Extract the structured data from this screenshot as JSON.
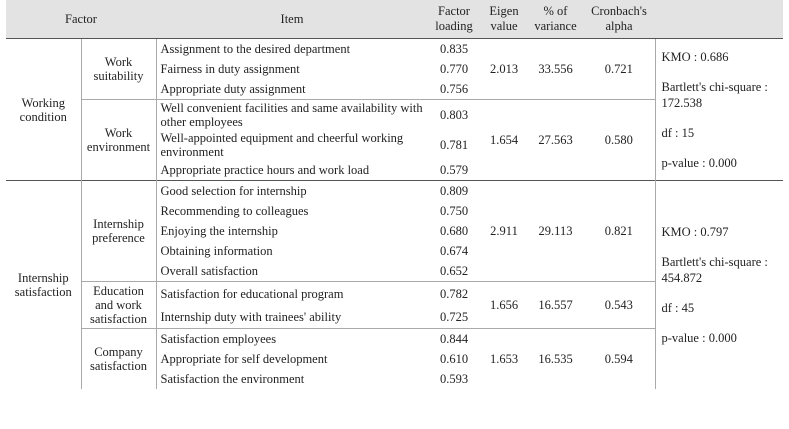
{
  "headers": {
    "factor": "Factor",
    "item": "Item",
    "loading": "Factor loading",
    "eigen": "Eigen value",
    "variance": "% of variance",
    "alpha": "Cronbach's alpha"
  },
  "groups": {
    "working": {
      "label": "Working condition",
      "suitability": {
        "label": "Work suitability",
        "items": [
          {
            "item": "Assignment to the desired department",
            "loading": "0.835"
          },
          {
            "item": "Fairness in duty assignment",
            "loading": "0.770"
          },
          {
            "item": "Appropriate duty assignment",
            "loading": "0.756"
          }
        ],
        "eigen": "2.013",
        "variance": "33.556",
        "alpha": "0.721"
      },
      "environment": {
        "label": "Work environment",
        "items": [
          {
            "item": "Well convenient facilities and same availability with other employees",
            "loading": "0.803"
          },
          {
            "item": "Well-appointed equipment and cheerful working environment",
            "loading": "0.781"
          },
          {
            "item": "Appropriate practice hours and work load",
            "loading": "0.579"
          }
        ],
        "eigen": "1.654",
        "variance": "27.563",
        "alpha": "0.580"
      },
      "summary": {
        "kmo": "KMO : 0.686",
        "bartlett": "Bartlett's chi-square : 172.538",
        "df": "df : 15",
        "pvalue": "p-value : 0.000"
      }
    },
    "internship": {
      "label": "Internship satisfaction",
      "preference": {
        "label": "Internship preference",
        "items": [
          {
            "item": "Good selection for internship",
            "loading": "0.809"
          },
          {
            "item": "Recommending to colleagues",
            "loading": "0.750"
          },
          {
            "item": "Enjoying the internship",
            "loading": "0.680"
          },
          {
            "item": "Obtaining information",
            "loading": "0.674"
          },
          {
            "item": "Overall satisfaction",
            "loading": "0.652"
          }
        ],
        "eigen": "2.911",
        "variance": "29.113",
        "alpha": "0.821"
      },
      "education": {
        "label": "Education and work satisfaction",
        "items": [
          {
            "item": "Satisfaction for educational program",
            "loading": "0.782"
          },
          {
            "item": "Internship duty with trainees' ability",
            "loading": "0.725"
          }
        ],
        "eigen": "1.656",
        "variance": "16.557",
        "alpha": "0.543"
      },
      "company": {
        "label": "Company satisfaction",
        "items": [
          {
            "item": "Satisfaction employees",
            "loading": "0.844"
          },
          {
            "item": "Appropriate for self development",
            "loading": "0.610"
          },
          {
            "item": "Satisfaction the environment",
            "loading": "0.593"
          }
        ],
        "eigen": "1.653",
        "variance": "16.535",
        "alpha": "0.594"
      },
      "summary": {
        "kmo": "KMO : 0.797",
        "bartlett": "Bartlett's chi-square : 454.872",
        "df": "df : 45",
        "pvalue": "p-value : 0.000"
      }
    }
  }
}
